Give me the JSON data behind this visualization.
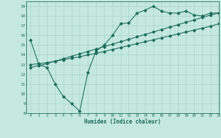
{
  "title": "",
  "xlabel": "Humidex (Indice chaleur)",
  "xlim": [
    -0.5,
    23
  ],
  "ylim": [
    8,
    19.5
  ],
  "xticks": [
    0,
    1,
    2,
    3,
    4,
    5,
    6,
    7,
    8,
    9,
    10,
    11,
    12,
    13,
    14,
    15,
    16,
    17,
    18,
    19,
    20,
    21,
    22,
    23
  ],
  "yticks": [
    8,
    9,
    10,
    11,
    12,
    13,
    14,
    15,
    16,
    17,
    18,
    19
  ],
  "bg_color": "#c5e8e0",
  "grid_color": "#a8d4cc",
  "line_color": "#1a6b5a",
  "line1_x": [
    0,
    1,
    2,
    3,
    4,
    5,
    6,
    7,
    8,
    9,
    10,
    11,
    12,
    13,
    14,
    15,
    16,
    17,
    18,
    19,
    20,
    21,
    22,
    23
  ],
  "line1_y": [
    15.5,
    13.0,
    12.7,
    11.0,
    9.7,
    9.0,
    8.2,
    12.2,
    14.4,
    15.0,
    16.0,
    17.2,
    17.3,
    18.3,
    18.6,
    19.0,
    18.5,
    18.3,
    18.3,
    18.5,
    18.1,
    18.0,
    18.3,
    18.3
  ],
  "line2_x": [
    0,
    1,
    2,
    3,
    4,
    5,
    6,
    7,
    8,
    9,
    10,
    11,
    12,
    13,
    14,
    15,
    16,
    17,
    18,
    19,
    20,
    21,
    22,
    23
  ],
  "line2_y": [
    13.0,
    13.1,
    13.2,
    13.35,
    13.5,
    13.65,
    13.8,
    14.0,
    14.15,
    14.35,
    14.55,
    14.75,
    14.95,
    15.15,
    15.35,
    15.55,
    15.75,
    15.95,
    16.15,
    16.35,
    16.55,
    16.75,
    16.95,
    17.2
  ],
  "line3_x": [
    0,
    1,
    2,
    3,
    4,
    5,
    6,
    7,
    8,
    9,
    10,
    11,
    12,
    13,
    14,
    15,
    16,
    17,
    18,
    19,
    20,
    21,
    22,
    23
  ],
  "line3_y": [
    12.7,
    12.9,
    13.1,
    13.35,
    13.6,
    13.85,
    14.1,
    14.35,
    14.6,
    14.85,
    15.1,
    15.35,
    15.6,
    15.85,
    16.1,
    16.35,
    16.6,
    16.85,
    17.1,
    17.35,
    17.6,
    17.85,
    18.1,
    18.3
  ]
}
